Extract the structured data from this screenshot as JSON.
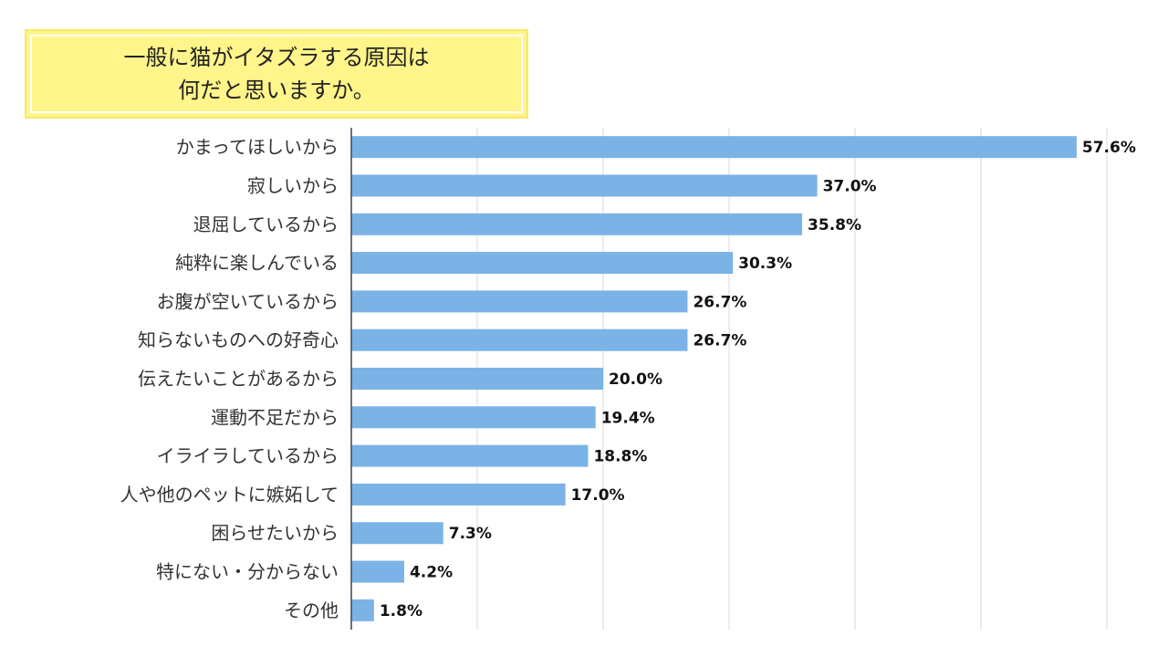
{
  "title": {
    "line1": "一般に猫がイタズラする原因は",
    "line2": "何だと思いますか。"
  },
  "colors": {
    "bar": "#7bb3e6",
    "title_bg": "#fff58a",
    "grid": "#d9d9d9",
    "axis": "#444444"
  },
  "chart_data": {
    "type": "bar",
    "orientation": "horizontal",
    "title": "一般に猫がイタズラする原因は何だと思いますか。",
    "unit": "%",
    "xlim": [
      0,
      60
    ],
    "grid": true,
    "categories": [
      "かまってほしいから",
      "寂しいから",
      "退屈しているから",
      "純粋に楽しんでいる",
      "お腹が空いているから",
      "知らないものへの好奇心",
      "伝えたいことがあるから",
      "運動不足だから",
      "イライラしているから",
      "人や他のペットに嫉妬して",
      "困らせたいから",
      "特にない・分からない",
      "その他"
    ],
    "values": [
      57.6,
      37.0,
      35.8,
      30.3,
      26.7,
      26.7,
      20.0,
      19.4,
      18.8,
      17.0,
      7.3,
      4.2,
      1.8
    ],
    "value_labels": [
      "57.6%",
      "37.0%",
      "35.8%",
      "30.3%",
      "26.7%",
      "26.7%",
      "20.0%",
      "19.4%",
      "18.8%",
      "17.0%",
      "7.3%",
      "4.2%",
      "1.8%"
    ]
  }
}
